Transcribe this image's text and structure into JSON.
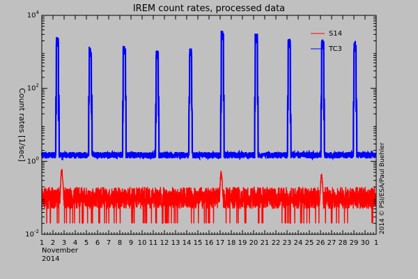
{
  "chart_data": {
    "type": "line",
    "title": "IREM count rates, processed data",
    "ylabel": "Count rates [1/sec]",
    "ylog": true,
    "ylim": [
      0.01,
      10000
    ],
    "y_ticks": [
      {
        "value": 0.01,
        "base": "10",
        "exp": "-2"
      },
      {
        "value": 1,
        "base": "10",
        "exp": "0"
      },
      {
        "value": 100,
        "base": "10",
        "exp": "2"
      },
      {
        "value": 10000,
        "base": "10",
        "exp": "4"
      }
    ],
    "xlim": [
      1,
      31
    ],
    "x_ticks": [
      {
        "day": 1,
        "label": "1"
      },
      {
        "day": 2,
        "label": "2"
      },
      {
        "day": 3,
        "label": "3"
      },
      {
        "day": 4,
        "label": "4"
      },
      {
        "day": 5,
        "label": "5"
      },
      {
        "day": 6,
        "label": "6"
      },
      {
        "day": 7,
        "label": "7"
      },
      {
        "day": 8,
        "label": "8"
      },
      {
        "day": 9,
        "label": "9"
      },
      {
        "day": 10,
        "label": "10"
      },
      {
        "day": 11,
        "label": "11"
      },
      {
        "day": 12,
        "label": "12"
      },
      {
        "day": 13,
        "label": "13"
      },
      {
        "day": 14,
        "label": "14"
      },
      {
        "day": 15,
        "label": "15"
      },
      {
        "day": 16,
        "label": "16"
      },
      {
        "day": 17,
        "label": "17"
      },
      {
        "day": 18,
        "label": "18"
      },
      {
        "day": 19,
        "label": "19"
      },
      {
        "day": 20,
        "label": "20"
      },
      {
        "day": 21,
        "label": "21"
      },
      {
        "day": 22,
        "label": "22"
      },
      {
        "day": 23,
        "label": "23"
      },
      {
        "day": 24,
        "label": "24"
      },
      {
        "day": 25,
        "label": "25"
      },
      {
        "day": 26,
        "label": "26"
      },
      {
        "day": 27,
        "label": "27"
      },
      {
        "day": 28,
        "label": "28"
      },
      {
        "day": 29,
        "label": "29"
      },
      {
        "day": 30,
        "label": "30"
      },
      {
        "day": 31,
        "label": "1"
      }
    ],
    "x_sublabel_month": "November",
    "x_sublabel_year": "2014",
    "credit": "2014 © PSI/ESA/Paul Buehler",
    "legend_position": "top-right",
    "series": [
      {
        "name": "S14",
        "color": "#ff0000",
        "baseline_low": 0.05,
        "baseline_high": 0.2,
        "dropout_floor": 0.02,
        "spikes": [
          {
            "day": 2.8,
            "peak": 0.7
          },
          {
            "day": 17.1,
            "peak": 0.6
          },
          {
            "day": 26.1,
            "peak": 0.5
          }
        ]
      },
      {
        "name": "TC3",
        "color": "#0000ff",
        "baseline": 1.5,
        "passes": [
          {
            "start": 2.3,
            "end": 2.5,
            "peak": 2600
          },
          {
            "start": 5.25,
            "end": 5.45,
            "peak": 1400
          },
          {
            "start": 8.3,
            "end": 8.5,
            "peak": 1500
          },
          {
            "start": 11.25,
            "end": 11.45,
            "peak": 1100
          },
          {
            "start": 14.25,
            "end": 14.45,
            "peak": 1300
          },
          {
            "start": 17.1,
            "end": 17.3,
            "peak": 3800
          },
          {
            "start": 20.15,
            "end": 20.35,
            "peak": 3200
          },
          {
            "start": 23.1,
            "end": 23.3,
            "peak": 2300
          },
          {
            "start": 26.1,
            "end": 26.3,
            "peak": 2200
          },
          {
            "start": 29.0,
            "end": 29.2,
            "peak": 2000
          }
        ]
      }
    ]
  }
}
